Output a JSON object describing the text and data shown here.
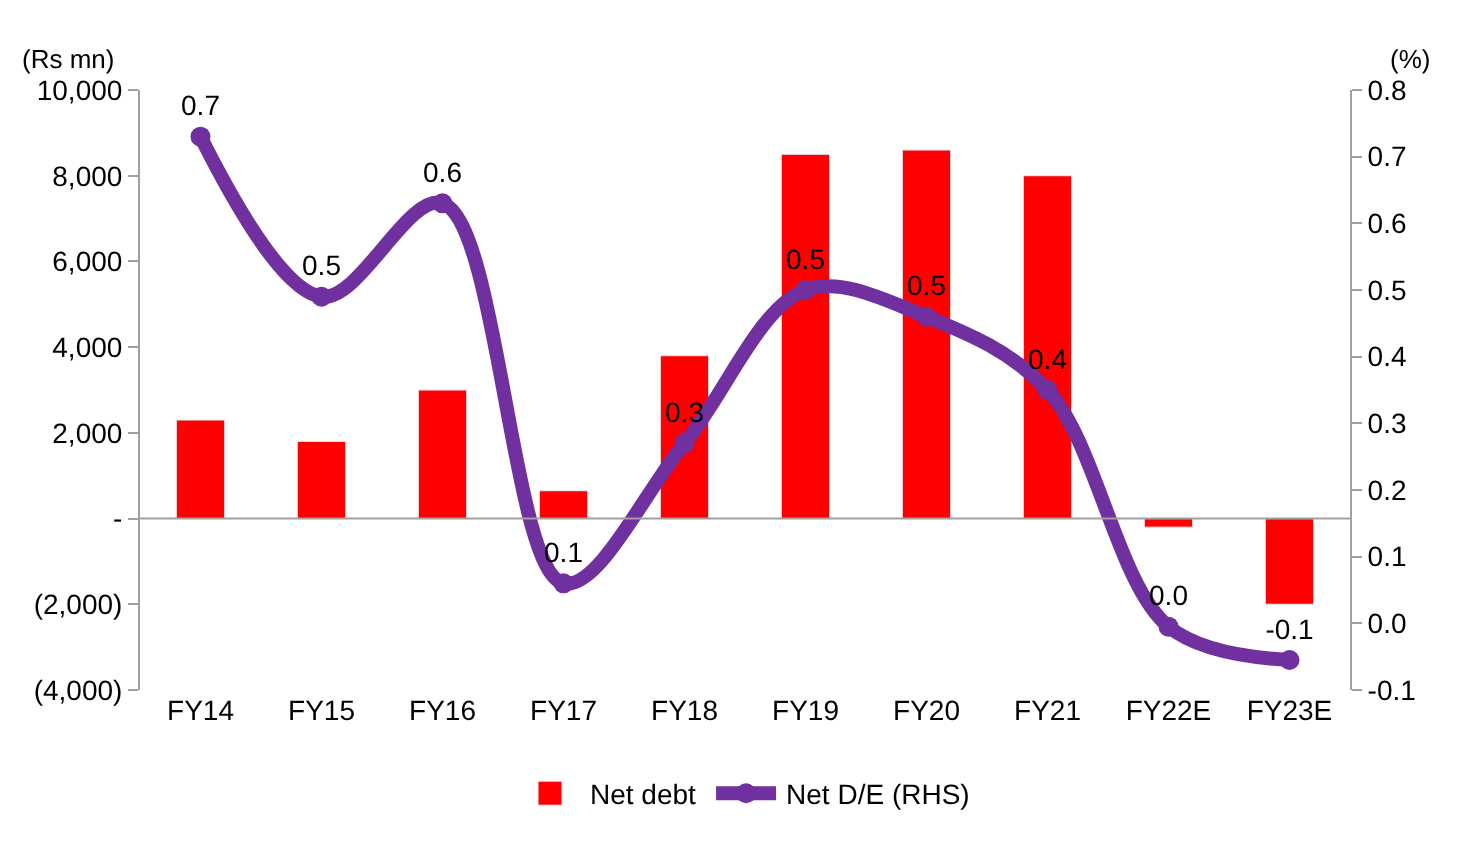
{
  "chart_data": {
    "type": "bar",
    "ylabel": "(Rs mn)",
    "y2label": "(%)",
    "categories": [
      "FY14",
      "FY15",
      "FY16",
      "FY17",
      "FY18",
      "FY19",
      "FY20",
      "FY21",
      "FY22E",
      "FY23E"
    ],
    "series": [
      {
        "name": "Net debt",
        "color": "#ff0000",
        "values": [
          2300,
          1800,
          3000,
          650,
          3800,
          8500,
          8600,
          8000,
          -200,
          -2000
        ]
      },
      {
        "name": "Net D/E (RHS)",
        "type": "line",
        "axis": "y2",
        "color": "#7030a0",
        "marker": "circle",
        "values": [
          0.73,
          0.49,
          0.63,
          0.06,
          0.27,
          0.5,
          0.46,
          0.35,
          -0.005,
          -0.055
        ],
        "value_labels": [
          "0.7",
          "0.5",
          "0.6",
          "0.1",
          "0.3",
          "0.5",
          "0.5",
          "0.4",
          "0.0",
          "-0.1"
        ]
      }
    ],
    "ylim": [
      -4000,
      10000
    ],
    "yticks": [
      {
        "value": -4000,
        "label": "(4,000)"
      },
      {
        "value": -2000,
        "label": "(2,000)"
      },
      {
        "value": 0,
        "label": "-"
      },
      {
        "value": 2000,
        "label": "2,000"
      },
      {
        "value": 4000,
        "label": "4,000"
      },
      {
        "value": 6000,
        "label": "6,000"
      },
      {
        "value": 8000,
        "label": "8,000"
      },
      {
        "value": 10000,
        "label": "10,000"
      }
    ],
    "y2lim": [
      -0.1,
      0.8
    ],
    "y2ticks": [
      {
        "value": -0.1,
        "label": "-0.1"
      },
      {
        "value": 0,
        "label": "0.0"
      },
      {
        "value": 0.1,
        "label": "0.1"
      },
      {
        "value": 0.2,
        "label": "0.2"
      },
      {
        "value": 0.3,
        "label": "0.3"
      },
      {
        "value": 0.4,
        "label": "0.4"
      },
      {
        "value": 0.5,
        "label": "0.5"
      },
      {
        "value": 0.6,
        "label": "0.6"
      },
      {
        "value": 0.7,
        "label": "0.7"
      },
      {
        "value": 0.8,
        "label": "0.8"
      }
    ],
    "legend": "bottom"
  }
}
